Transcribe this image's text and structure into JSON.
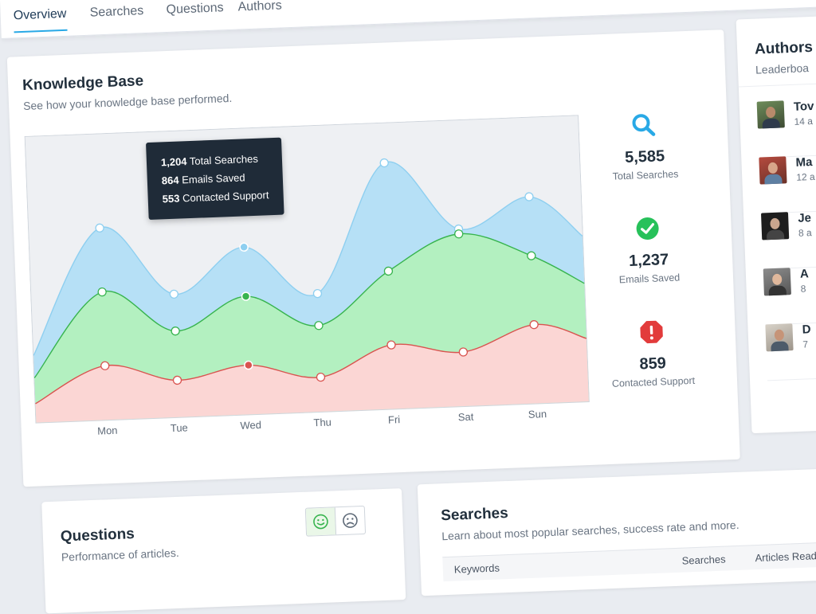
{
  "nav": {
    "tabs": [
      {
        "label": "Overview",
        "active": true
      },
      {
        "label": "Searches",
        "active": false
      },
      {
        "label": "Questions",
        "active": false
      },
      {
        "label": "Authors",
        "active": false
      }
    ]
  },
  "knowledge_base": {
    "title": "Knowledge Base",
    "subtitle": "See how your knowledge base performed.",
    "tooltip": {
      "line1_value": "1,204",
      "line1_label": "Total Searches",
      "line2_value": "864",
      "line2_label": "Emails Saved",
      "line3_value": "553",
      "line3_label": "Contacted Support"
    },
    "stats": [
      {
        "value": "5,585",
        "label": "Total Searches",
        "icon": "search-icon",
        "color": "#29a9e6"
      },
      {
        "value": "1,237",
        "label": "Emails Saved",
        "icon": "check-circle-icon",
        "color": "#27c15a"
      },
      {
        "value": "859",
        "label": "Contacted Support",
        "icon": "alert-octagon-icon",
        "color": "#e23b3b"
      }
    ]
  },
  "chart_data": {
    "type": "area",
    "categories": [
      "Mon",
      "Tue",
      "Wed",
      "Thu",
      "Fri",
      "Sat",
      "Sun"
    ],
    "series": [
      {
        "name": "Total Searches",
        "color": "#8ecff0",
        "fill": "#b6e0f6",
        "values": [
          78,
          50,
          68,
          48,
          100,
          72,
          84
        ]
      },
      {
        "name": "Emails Saved",
        "color": "#37b44e",
        "fill": "#b3f0c0",
        "values": [
          52,
          35,
          48,
          35,
          56,
          70,
          60
        ]
      },
      {
        "name": "Contacted Support",
        "color": "#d9534f",
        "fill": "#fbd6d4",
        "values": [
          22,
          15,
          20,
          14,
          26,
          22,
          32
        ]
      }
    ],
    "highlight_index": 2,
    "ylim": [
      0,
      110
    ]
  },
  "authors": {
    "title": "Authors",
    "subtitle": "Leaderboa",
    "rows": [
      {
        "name": "Tov",
        "meta": "14 a"
      },
      {
        "name": "Ma",
        "meta": "12 a"
      },
      {
        "name": "Je",
        "meta": "8 a"
      },
      {
        "name": "A",
        "meta": "8"
      },
      {
        "name": "D",
        "meta": "7"
      }
    ]
  },
  "questions": {
    "title": "Questions",
    "subtitle": "Performance of articles."
  },
  "searches": {
    "title": "Searches",
    "subtitle": "Learn about most popular searches, success rate and more.",
    "columns": [
      "Keywords",
      "Searches",
      "Articles Read"
    ]
  }
}
